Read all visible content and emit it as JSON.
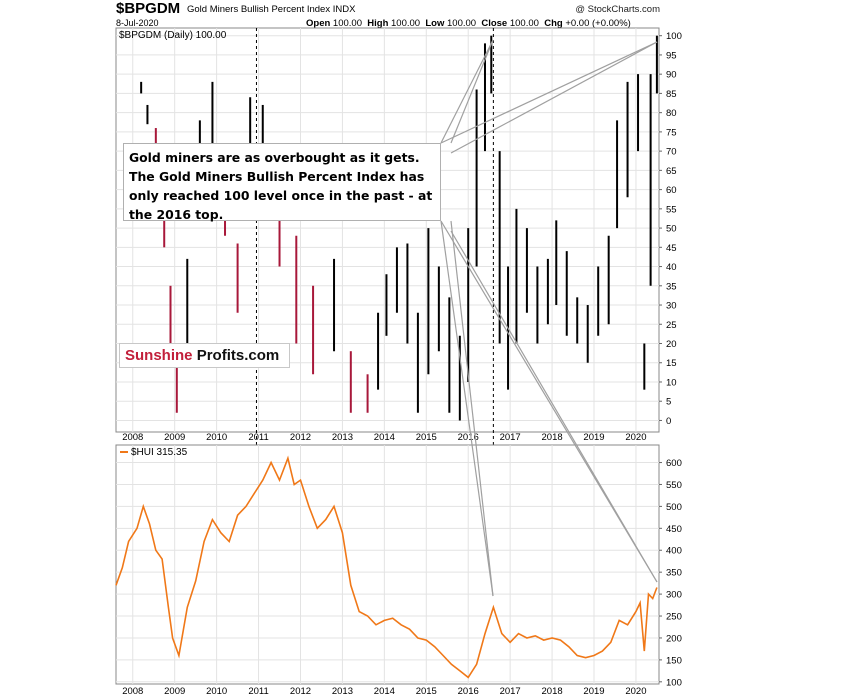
{
  "header": {
    "symbol": "$BPGDM",
    "name": "Gold Miners Bullish Percent Index",
    "exchange": "INDX",
    "date": "8-Jul-2020",
    "credit": "@ StockCharts.com",
    "open_label": "Open",
    "open": "100.00",
    "high_label": "High",
    "high": "100.00",
    "low_label": "Low",
    "low": "100.00",
    "close_label": "Close",
    "close": "100.00",
    "chg_label": "Chg",
    "chg": "+0.00 (+0.00%)"
  },
  "callout": {
    "text": "Gold miners are as overbought as it gets. The Gold Miners Bullish Percent Index has only reached 100 level once in the past - at the 2016 top."
  },
  "logo": {
    "part1": "Sunshine",
    "part2": "Profits.com"
  },
  "colors": {
    "bar": "#000000",
    "bar_down": "#a8183a",
    "hui_line": "#f07818",
    "grid": "#e3e3e3",
    "callout_line": "#a0a0a0"
  },
  "chart_data": [
    {
      "type": "bar",
      "title": "$BPGDM (Daily) 100.00",
      "legend": "$BPGDM (Daily) 100.00",
      "ylim": [
        -3,
        102
      ],
      "yticks": [
        0,
        5,
        10,
        15,
        20,
        25,
        30,
        35,
        40,
        45,
        50,
        55,
        60,
        65,
        70,
        75,
        80,
        85,
        90,
        95,
        100
      ],
      "xlim": [
        2007.6,
        2020.55
      ],
      "xticks": [
        {
          "label": "2008",
          "x": 2008.0
        },
        {
          "label": "2009",
          "x": 2009.0
        },
        {
          "label": "2010",
          "x": 2010.0
        },
        {
          "label": "2011",
          "x": 2011.0
        },
        {
          "label": "2012",
          "x": 2012.0
        },
        {
          "label": "2013",
          "x": 2013.0
        },
        {
          "label": "2014",
          "x": 2014.0
        },
        {
          "label": "2015",
          "x": 2015.0
        },
        {
          "label": "2016",
          "x": 2016.0
        },
        {
          "label": "2017",
          "x": 2017.0
        },
        {
          "label": "2018",
          "x": 2018.0
        },
        {
          "label": "2019",
          "x": 2019.0
        },
        {
          "label": "2020",
          "x": 2020.0
        }
      ],
      "marker_dates": [
        2010.95,
        2016.6
      ],
      "bars": [
        {
          "x": 2008.2,
          "low": 85,
          "high": 88,
          "down": false
        },
        {
          "x": 2008.35,
          "low": 77,
          "high": 82,
          "down": false
        },
        {
          "x": 2008.55,
          "low": 62,
          "high": 76,
          "down": true
        },
        {
          "x": 2008.75,
          "low": 45,
          "high": 60,
          "down": true
        },
        {
          "x": 2008.9,
          "low": 20,
          "high": 35,
          "down": true
        },
        {
          "x": 2009.05,
          "low": 2,
          "high": 18,
          "down": true
        },
        {
          "x": 2009.3,
          "low": 20,
          "high": 42,
          "down": false
        },
        {
          "x": 2009.6,
          "low": 55,
          "high": 78,
          "down": false
        },
        {
          "x": 2009.9,
          "low": 68,
          "high": 88,
          "down": false
        },
        {
          "x": 2010.2,
          "low": 48,
          "high": 68,
          "down": true
        },
        {
          "x": 2010.5,
          "low": 28,
          "high": 46,
          "down": true
        },
        {
          "x": 2010.8,
          "low": 62,
          "high": 84,
          "down": false
        },
        {
          "x": 2011.1,
          "low": 68,
          "high": 82,
          "down": false
        },
        {
          "x": 2011.5,
          "low": 40,
          "high": 60,
          "down": true
        },
        {
          "x": 2011.9,
          "low": 20,
          "high": 48,
          "down": true
        },
        {
          "x": 2012.3,
          "low": 12,
          "high": 35,
          "down": true
        },
        {
          "x": 2012.8,
          "low": 18,
          "high": 42,
          "down": false
        },
        {
          "x": 2013.2,
          "low": 2,
          "high": 18,
          "down": true
        },
        {
          "x": 2013.6,
          "low": 2,
          "high": 12,
          "down": true
        },
        {
          "x": 2013.85,
          "low": 8,
          "high": 28,
          "down": false
        },
        {
          "x": 2014.05,
          "low": 22,
          "high": 38,
          "down": false
        },
        {
          "x": 2014.3,
          "low": 28,
          "high": 45,
          "down": false
        },
        {
          "x": 2014.55,
          "low": 20,
          "high": 46,
          "down": false
        },
        {
          "x": 2014.8,
          "low": 2,
          "high": 28,
          "down": false
        },
        {
          "x": 2015.05,
          "low": 12,
          "high": 50,
          "down": false
        },
        {
          "x": 2015.3,
          "low": 18,
          "high": 40,
          "down": false
        },
        {
          "x": 2015.55,
          "low": 2,
          "high": 32,
          "down": false
        },
        {
          "x": 2015.8,
          "low": 0,
          "high": 22,
          "down": false
        },
        {
          "x": 2016.0,
          "low": 10,
          "high": 50,
          "down": false
        },
        {
          "x": 2016.2,
          "low": 40,
          "high": 86,
          "down": false
        },
        {
          "x": 2016.4,
          "low": 70,
          "high": 98,
          "down": false
        },
        {
          "x": 2016.55,
          "low": 85,
          "high": 100,
          "down": false
        },
        {
          "x": 2016.75,
          "low": 20,
          "high": 70,
          "down": false
        },
        {
          "x": 2016.95,
          "low": 8,
          "high": 40,
          "down": false
        },
        {
          "x": 2017.15,
          "low": 20,
          "high": 55,
          "down": false
        },
        {
          "x": 2017.4,
          "low": 28,
          "high": 50,
          "down": false
        },
        {
          "x": 2017.65,
          "low": 20,
          "high": 40,
          "down": false
        },
        {
          "x": 2017.9,
          "low": 25,
          "high": 42,
          "down": false
        },
        {
          "x": 2018.1,
          "low": 30,
          "high": 52,
          "down": false
        },
        {
          "x": 2018.35,
          "low": 22,
          "high": 44,
          "down": false
        },
        {
          "x": 2018.6,
          "low": 20,
          "high": 32,
          "down": false
        },
        {
          "x": 2018.85,
          "low": 15,
          "high": 30,
          "down": false
        },
        {
          "x": 2019.1,
          "low": 22,
          "high": 40,
          "down": false
        },
        {
          "x": 2019.35,
          "low": 25,
          "high": 48,
          "down": false
        },
        {
          "x": 2019.55,
          "low": 50,
          "high": 78,
          "down": false
        },
        {
          "x": 2019.8,
          "low": 58,
          "high": 88,
          "down": false
        },
        {
          "x": 2020.05,
          "low": 70,
          "high": 90,
          "down": false
        },
        {
          "x": 2020.2,
          "low": 8,
          "high": 20,
          "down": false
        },
        {
          "x": 2020.35,
          "low": 35,
          "high": 90,
          "down": false
        },
        {
          "x": 2020.5,
          "low": 85,
          "high": 100,
          "down": false
        }
      ]
    },
    {
      "type": "line",
      "title": "$HUI 315.35",
      "legend": "$HUI 315.35",
      "ylim": [
        95,
        640
      ],
      "yticks": [
        100,
        150,
        200,
        250,
        300,
        350,
        400,
        450,
        500,
        550,
        600
      ],
      "xlim": [
        2007.6,
        2020.55
      ],
      "xticks": [
        {
          "label": "2008",
          "x": 2008.0
        },
        {
          "label": "2009",
          "x": 2009.0
        },
        {
          "label": "2010",
          "x": 2010.0
        },
        {
          "label": "2011",
          "x": 2011.0
        },
        {
          "label": "2012",
          "x": 2012.0
        },
        {
          "label": "2013",
          "x": 2013.0
        },
        {
          "label": "2014",
          "x": 2014.0
        },
        {
          "label": "2015",
          "x": 2015.0
        },
        {
          "label": "2016",
          "x": 2016.0
        },
        {
          "label": "2017",
          "x": 2017.0
        },
        {
          "label": "2018",
          "x": 2018.0
        },
        {
          "label": "2019",
          "x": 2019.0
        },
        {
          "label": "2020",
          "x": 2020.0
        }
      ],
      "x": [
        2007.6,
        2007.75,
        2007.9,
        2008.1,
        2008.25,
        2008.4,
        2008.55,
        2008.7,
        2008.85,
        2008.95,
        2009.1,
        2009.3,
        2009.5,
        2009.7,
        2009.9,
        2010.1,
        2010.3,
        2010.5,
        2010.7,
        2010.9,
        2011.1,
        2011.3,
        2011.5,
        2011.7,
        2011.85,
        2012.0,
        2012.2,
        2012.4,
        2012.6,
        2012.8,
        2013.0,
        2013.2,
        2013.4,
        2013.6,
        2013.8,
        2014.0,
        2014.2,
        2014.4,
        2014.6,
        2014.8,
        2015.0,
        2015.2,
        2015.4,
        2015.6,
        2015.8,
        2016.0,
        2016.2,
        2016.4,
        2016.6,
        2016.8,
        2017.0,
        2017.2,
        2017.4,
        2017.6,
        2017.8,
        2018.0,
        2018.2,
        2018.4,
        2018.6,
        2018.8,
        2019.0,
        2019.2,
        2019.4,
        2019.6,
        2019.8,
        2020.0,
        2020.1,
        2020.2,
        2020.3,
        2020.4,
        2020.5
      ],
      "values": [
        320,
        360,
        420,
        450,
        500,
        460,
        400,
        380,
        270,
        200,
        160,
        270,
        330,
        420,
        470,
        440,
        420,
        480,
        500,
        530,
        560,
        600,
        560,
        610,
        550,
        560,
        500,
        450,
        470,
        500,
        440,
        320,
        260,
        250,
        230,
        240,
        245,
        230,
        220,
        200,
        195,
        180,
        160,
        140,
        125,
        110,
        140,
        210,
        270,
        210,
        190,
        210,
        200,
        205,
        195,
        200,
        195,
        180,
        160,
        155,
        160,
        170,
        190,
        240,
        230,
        260,
        280,
        170,
        300,
        290,
        315
      ]
    }
  ]
}
